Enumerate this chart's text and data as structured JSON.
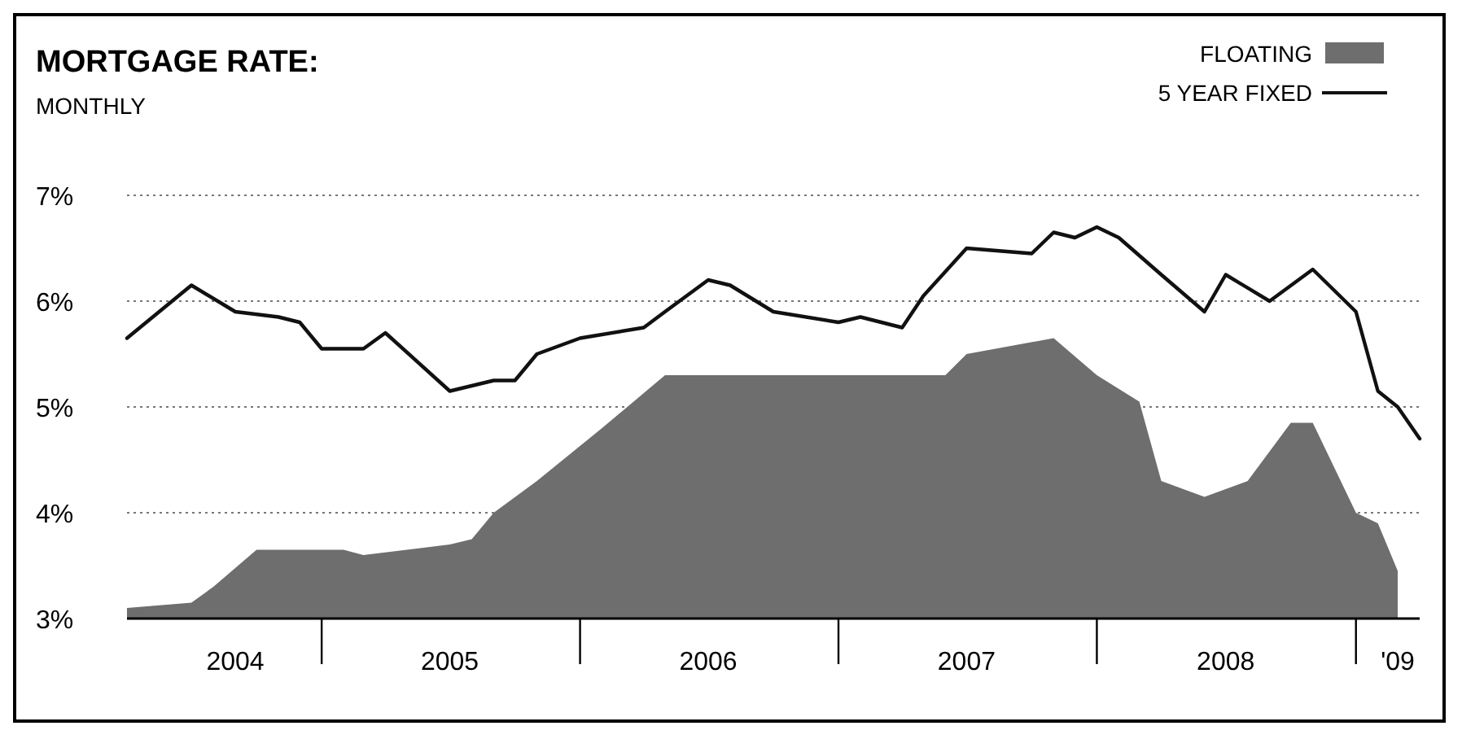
{
  "chart_data": {
    "type": "area",
    "title": "MORTGAGE RATE:",
    "subtitle": "MONTHLY",
    "xlim": [
      "2004-04",
      "2009-04"
    ],
    "ylim": [
      3,
      7
    ],
    "xticks": [
      {
        "value": "2004-09",
        "label": "2004"
      },
      {
        "value": "2005-07",
        "label": "2005"
      },
      {
        "value": "2006-07",
        "label": "2006"
      },
      {
        "value": "2007-07",
        "label": "2007"
      },
      {
        "value": "2008-07",
        "label": "2008"
      },
      {
        "value": "2009-03",
        "label": "'09"
      }
    ],
    "yticks": [
      {
        "value": 3,
        "label": "3%"
      },
      {
        "value": 4,
        "label": "4%"
      },
      {
        "value": 5,
        "label": "5%"
      },
      {
        "value": 6,
        "label": "6%"
      },
      {
        "value": 7,
        "label": "7%"
      }
    ],
    "grid": "y",
    "legend": "top right",
    "series": [
      {
        "name": "FLOATING",
        "color": "#6e6e6e",
        "x": [
          "2004-04",
          "2004-07",
          "2004-08",
          "2004-10",
          "2005-02",
          "2005-03",
          "2005-07",
          "2005-08",
          "2005-09",
          "2005-11",
          "2006-02",
          "2006-05",
          "2007-06",
          "2007-07",
          "2007-11",
          "2008-01",
          "2008-03",
          "2008-04",
          "2008-06",
          "2008-08",
          "2008-10",
          "2008-11",
          "2009-01",
          "2009-02",
          "2009-03"
        ],
        "values": [
          3.1,
          3.15,
          3.3,
          3.65,
          3.65,
          3.6,
          3.7,
          3.75,
          4.0,
          4.3,
          4.8,
          5.3,
          5.3,
          5.5,
          5.65,
          5.3,
          5.05,
          4.3,
          4.15,
          4.3,
          4.85,
          4.85,
          4.0,
          3.9,
          3.45
        ]
      },
      {
        "name": "5 YEAR FIXED",
        "type": "line",
        "color": "#111111",
        "x": [
          "2004-04",
          "2004-07",
          "2004-09",
          "2004-11",
          "2004-12",
          "2005-01",
          "2005-03",
          "2005-04",
          "2005-07",
          "2005-09",
          "2005-10",
          "2005-11",
          "2006-01",
          "2006-04",
          "2006-05",
          "2006-07",
          "2006-08",
          "2006-10",
          "2007-01",
          "2007-02",
          "2007-04",
          "2007-05",
          "2007-07",
          "2007-10",
          "2007-11",
          "2007-12",
          "2008-01",
          "2008-02",
          "2008-04",
          "2008-06",
          "2008-07",
          "2008-09",
          "2008-11",
          "2009-01",
          "2009-02",
          "2009-03",
          "2009-04"
        ],
        "values": [
          5.65,
          6.15,
          5.9,
          5.85,
          5.8,
          5.55,
          5.55,
          5.7,
          5.15,
          5.25,
          5.25,
          5.5,
          5.65,
          5.75,
          5.9,
          6.2,
          6.15,
          5.9,
          5.8,
          5.85,
          5.75,
          6.05,
          6.5,
          6.45,
          6.65,
          6.6,
          6.7,
          6.6,
          6.25,
          5.9,
          6.25,
          6.0,
          6.3,
          5.9,
          5.15,
          5.0,
          4.7
        ]
      }
    ]
  }
}
